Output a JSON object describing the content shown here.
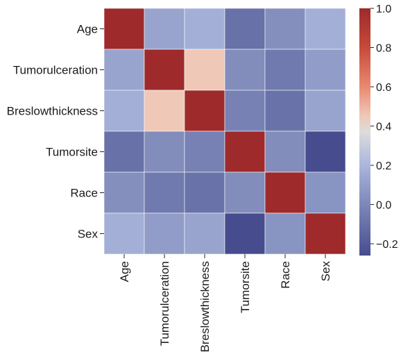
{
  "chart_data": {
    "type": "heatmap",
    "title": "",
    "xlabel": "",
    "ylabel": "",
    "rows": [
      "Age",
      "Tumorulceration",
      "Breslowthickness",
      "Tumorsite",
      "Race",
      "Sex"
    ],
    "columns": [
      "Age",
      "Tumorulceration",
      "Breslowthickness",
      "Tumorsite",
      "Race",
      "Sex"
    ],
    "values": [
      [
        1.0,
        0.12,
        0.17,
        -0.1,
        0.03,
        0.17
      ],
      [
        0.12,
        1.0,
        0.45,
        0.02,
        -0.06,
        0.09
      ],
      [
        0.17,
        0.45,
        1.0,
        -0.03,
        -0.09,
        0.12
      ],
      [
        -0.1,
        0.02,
        -0.03,
        1.0,
        0.02,
        -0.26
      ],
      [
        0.03,
        -0.06,
        -0.09,
        0.02,
        1.0,
        0.05
      ],
      [
        0.17,
        0.09,
        0.12,
        -0.26,
        0.05,
        1.0
      ]
    ],
    "colorbar": {
      "vmin": -0.26,
      "vmax": 1.0,
      "ticks": [
        1.0,
        0.8,
        0.6,
        0.4,
        0.2,
        0.0,
        -0.2
      ],
      "tick_labels": [
        "1.0",
        "0.8",
        "0.6",
        "0.4",
        "0.2",
        "0.0",
        "−0.2"
      ],
      "colormap": "diverging blue-white-red",
      "color_stops": [
        {
          "v": -0.26,
          "color": "#464c8e"
        },
        {
          "v": 0.0,
          "color": "#7d88b8"
        },
        {
          "v": 0.2,
          "color": "#aab6dc"
        },
        {
          "v": 0.37,
          "color": "#dcdcdc"
        },
        {
          "v": 0.45,
          "color": "#f0c8b8"
        },
        {
          "v": 0.6,
          "color": "#e88a70"
        },
        {
          "v": 0.8,
          "color": "#c64a3a"
        },
        {
          "v": 1.0,
          "color": "#9e2a2b"
        }
      ]
    }
  }
}
